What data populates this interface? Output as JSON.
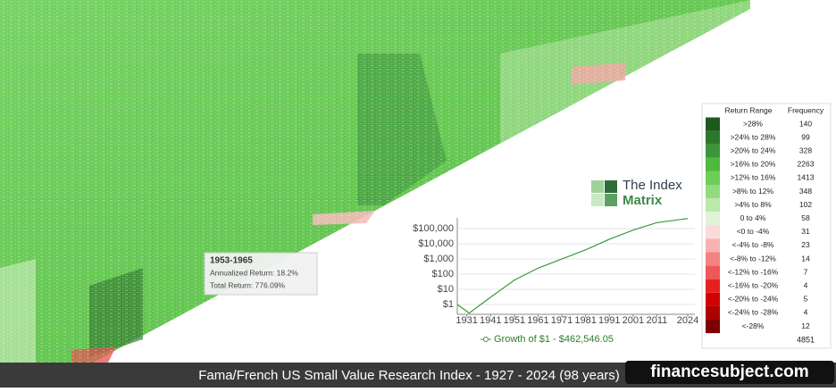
{
  "chart_data": {
    "type": "line",
    "x": [
      1927,
      1932,
      1941,
      1951,
      1961,
      1971,
      1981,
      1991,
      2001,
      2011,
      2024
    ],
    "series": [
      {
        "name": "Growth of $1 - $462,546.05",
        "color": "#3a9a3a",
        "values": [
          1,
          0.27,
          3,
          40,
          250,
          1000,
          4000,
          20000,
          80000,
          250000,
          462546.05
        ]
      }
    ],
    "xlim": [
      1927,
      2027
    ],
    "xticks": [
      1931,
      1941,
      1951,
      1961,
      1971,
      1981,
      1991,
      2001,
      2011,
      2024
    ],
    "ylim": [
      0.225,
      512000
    ],
    "log_y": true,
    "grid": true,
    "yticks": [
      {
        "value": 1,
        "label": "$1"
      },
      {
        "value": 10,
        "label": "$10"
      },
      {
        "value": 100,
        "label": "$100"
      },
      {
        "value": 1000,
        "label": "$1,000"
      },
      {
        "value": 10000,
        "label": "$10,000"
      },
      {
        "value": 100000,
        "label": "$100,000"
      }
    ]
  },
  "heatmap_legend": {
    "headers": [
      "Return Range",
      "Frequency"
    ],
    "rows": [
      {
        "range": ">28%",
        "frequency": "140",
        "color": "#1e5a1e"
      },
      {
        "range": ">24% to 28%",
        "frequency": "99",
        "color": "#2c772c"
      },
      {
        "range": ">20% to 24%",
        "frequency": "328",
        "color": "#3b963b"
      },
      {
        "range": ">16% to 20%",
        "frequency": "2263",
        "color": "#4fb83e"
      },
      {
        "range": ">12% to 16%",
        "frequency": "1413",
        "color": "#6dcd59"
      },
      {
        "range": ">8% to 12%",
        "frequency": "348",
        "color": "#92db7e"
      },
      {
        "range": ">4% to 8%",
        "frequency": "102",
        "color": "#bbe8ab"
      },
      {
        "range": "0 to 4%",
        "frequency": "58",
        "color": "#e0f3d7"
      },
      {
        "range": "<0 to -4%",
        "frequency": "31",
        "color": "#fcdada"
      },
      {
        "range": "<-4% to -8%",
        "frequency": "23",
        "color": "#f8b2b2"
      },
      {
        "range": "<-8% to -12%",
        "frequency": "14",
        "color": "#f38383"
      },
      {
        "range": "<-12% to -16%",
        "frequency": "7",
        "color": "#ee5858"
      },
      {
        "range": "<-16% to -20%",
        "frequency": "4",
        "color": "#e62020"
      },
      {
        "range": "<-20% to -24%",
        "frequency": "5",
        "color": "#d20000"
      },
      {
        "range": "<-24% to -28%",
        "frequency": "4",
        "color": "#ad0000"
      },
      {
        "range": "<-28%",
        "frequency": "12",
        "color": "#7d0000"
      }
    ],
    "total": "4851"
  },
  "tooltip": {
    "title": "1953-1965",
    "line1": "Annualized Return: 18.2%",
    "line2": "Total Return: 776.09%"
  },
  "logo": {
    "line1": "The Index",
    "line2": "Matrix"
  },
  "footer": "Fama/French US Small Value Research Index - 1927 - 2024 (98 years)",
  "watermark": "financesubject.com"
}
